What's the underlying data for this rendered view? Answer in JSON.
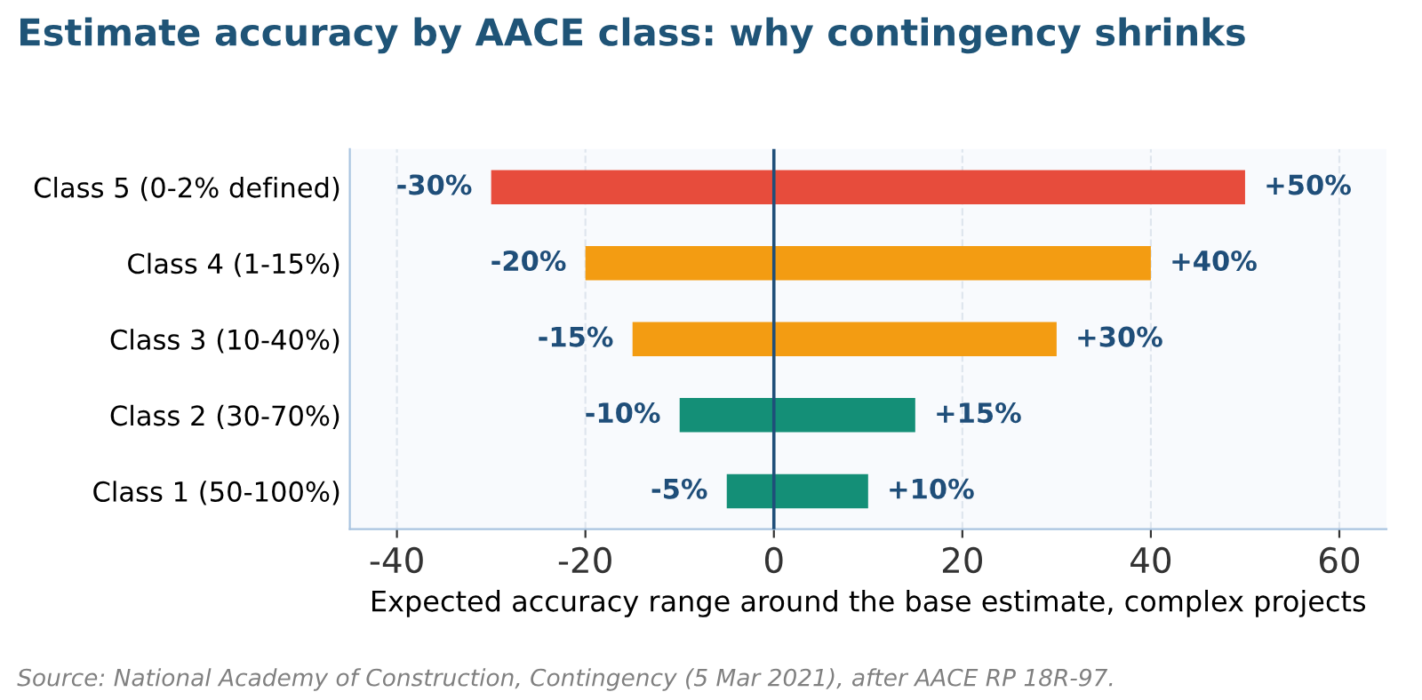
{
  "chart_data": {
    "type": "bar",
    "orientation": "horizontal",
    "stacked": true,
    "title": "Estimate accuracy by AACE class: why contingency shrinks",
    "xlabel": "Expected accuracy range around the base estimate, complex projects",
    "categories": [
      "Class 5 (0-2% defined)",
      "Class 4 (1-15%)",
      "Class 3 (10-40%)",
      "Class 2 (30-70%)",
      "Class 1 (50-100%)"
    ],
    "series": [
      {
        "colors": [
          "#e74c3c",
          "#f39c12",
          "#f39c12",
          "#148f77",
          "#148f77"
        ],
        "values": [
          -30,
          -20,
          -15,
          -10,
          -5
        ],
        "value_labels": [
          "-30%",
          "-20%",
          "-15%",
          "-10%",
          "-5%"
        ]
      },
      {
        "colors": [
          "#e74c3c",
          "#f39c12",
          "#f39c12",
          "#148f77",
          "#148f77"
        ],
        "values": [
          50,
          40,
          30,
          15,
          10
        ],
        "value_labels": [
          "+50%",
          "+40%",
          "+30%",
          "+15%",
          "+10%"
        ]
      }
    ],
    "xlim": [
      -45,
      65
    ],
    "xticks": [
      -40,
      -20,
      0,
      20,
      40,
      60
    ],
    "grid": "x",
    "ref_lines": [
      {
        "axis": "x",
        "value": 0,
        "color": "#1f4e79"
      }
    ],
    "annotations": [
      "Source: National Academy of Construction, Contingency (5 Mar 2021), after AACE RP 18R-97."
    ]
  }
}
